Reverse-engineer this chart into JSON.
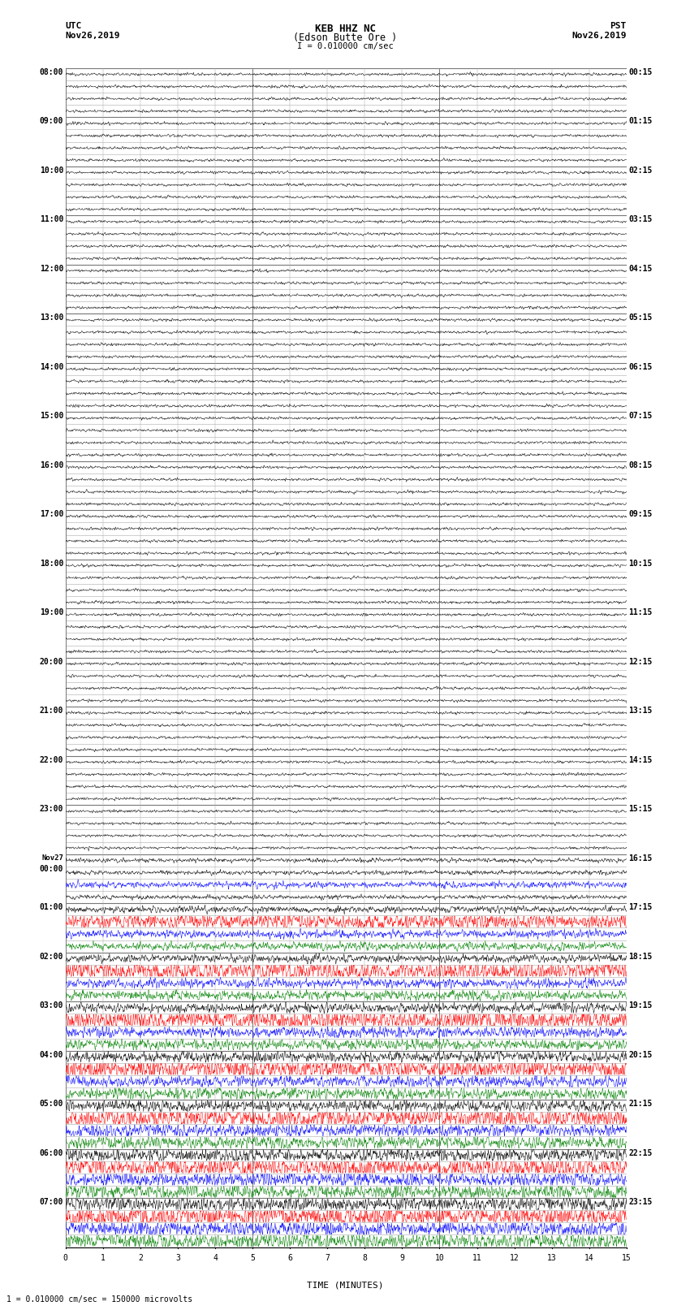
{
  "title_line1": "KEB HHZ NC",
  "title_line2": "(Edson Butte Ore )",
  "title_line3": "I = 0.010000 cm/sec",
  "utc_label": "UTC",
  "utc_date": "Nov26,2019",
  "pst_label": "PST",
  "pst_date": "Nov26,2019",
  "footer": "1 = 0.010000 cm/sec = 150000 microvolts",
  "xlabel": "TIME (MINUTES)",
  "minutes_per_row": 15,
  "rows": [
    {
      "utc": "08:00",
      "pst": "00:15",
      "label": true
    },
    {
      "utc": "",
      "pst": "",
      "label": false
    },
    {
      "utc": "",
      "pst": "",
      "label": false
    },
    {
      "utc": "",
      "pst": "",
      "label": false
    },
    {
      "utc": "09:00",
      "pst": "01:15",
      "label": true
    },
    {
      "utc": "",
      "pst": "",
      "label": false
    },
    {
      "utc": "",
      "pst": "",
      "label": false
    },
    {
      "utc": "",
      "pst": "",
      "label": false
    },
    {
      "utc": "10:00",
      "pst": "02:15",
      "label": true
    },
    {
      "utc": "",
      "pst": "",
      "label": false
    },
    {
      "utc": "",
      "pst": "",
      "label": false
    },
    {
      "utc": "",
      "pst": "",
      "label": false
    },
    {
      "utc": "11:00",
      "pst": "03:15",
      "label": true
    },
    {
      "utc": "",
      "pst": "",
      "label": false
    },
    {
      "utc": "",
      "pst": "",
      "label": false
    },
    {
      "utc": "",
      "pst": "",
      "label": false
    },
    {
      "utc": "12:00",
      "pst": "04:15",
      "label": true
    },
    {
      "utc": "",
      "pst": "",
      "label": false
    },
    {
      "utc": "",
      "pst": "",
      "label": false
    },
    {
      "utc": "",
      "pst": "",
      "label": false
    },
    {
      "utc": "13:00",
      "pst": "05:15",
      "label": true
    },
    {
      "utc": "",
      "pst": "",
      "label": false
    },
    {
      "utc": "",
      "pst": "",
      "label": false
    },
    {
      "utc": "",
      "pst": "",
      "label": false
    },
    {
      "utc": "14:00",
      "pst": "06:15",
      "label": true
    },
    {
      "utc": "",
      "pst": "",
      "label": false
    },
    {
      "utc": "",
      "pst": "",
      "label": false
    },
    {
      "utc": "",
      "pst": "",
      "label": false
    },
    {
      "utc": "15:00",
      "pst": "07:15",
      "label": true
    },
    {
      "utc": "",
      "pst": "",
      "label": false
    },
    {
      "utc": "",
      "pst": "",
      "label": false
    },
    {
      "utc": "",
      "pst": "",
      "label": false
    },
    {
      "utc": "16:00",
      "pst": "08:15",
      "label": true
    },
    {
      "utc": "",
      "pst": "",
      "label": false
    },
    {
      "utc": "",
      "pst": "",
      "label": false
    },
    {
      "utc": "",
      "pst": "",
      "label": false
    },
    {
      "utc": "17:00",
      "pst": "09:15",
      "label": true
    },
    {
      "utc": "",
      "pst": "",
      "label": false
    },
    {
      "utc": "",
      "pst": "",
      "label": false
    },
    {
      "utc": "",
      "pst": "",
      "label": false
    },
    {
      "utc": "18:00",
      "pst": "10:15",
      "label": true
    },
    {
      "utc": "",
      "pst": "",
      "label": false
    },
    {
      "utc": "",
      "pst": "",
      "label": false
    },
    {
      "utc": "",
      "pst": "",
      "label": false
    },
    {
      "utc": "19:00",
      "pst": "11:15",
      "label": true
    },
    {
      "utc": "",
      "pst": "",
      "label": false
    },
    {
      "utc": "",
      "pst": "",
      "label": false
    },
    {
      "utc": "",
      "pst": "",
      "label": false
    },
    {
      "utc": "20:00",
      "pst": "12:15",
      "label": true
    },
    {
      "utc": "",
      "pst": "",
      "label": false
    },
    {
      "utc": "",
      "pst": "",
      "label": false
    },
    {
      "utc": "",
      "pst": "",
      "label": false
    },
    {
      "utc": "21:00",
      "pst": "13:15",
      "label": true
    },
    {
      "utc": "",
      "pst": "",
      "label": false
    },
    {
      "utc": "",
      "pst": "",
      "label": false
    },
    {
      "utc": "",
      "pst": "",
      "label": false
    },
    {
      "utc": "22:00",
      "pst": "14:15",
      "label": true
    },
    {
      "utc": "",
      "pst": "",
      "label": false
    },
    {
      "utc": "",
      "pst": "",
      "label": false
    },
    {
      "utc": "",
      "pst": "",
      "label": false
    },
    {
      "utc": "23:00",
      "pst": "15:15",
      "label": true
    },
    {
      "utc": "",
      "pst": "",
      "label": false
    },
    {
      "utc": "",
      "pst": "",
      "label": false
    },
    {
      "utc": "",
      "pst": "",
      "label": false
    },
    {
      "utc": "Nov27\n00:00",
      "pst": "16:15",
      "label": true
    },
    {
      "utc": "",
      "pst": "",
      "label": false
    },
    {
      "utc": "",
      "pst": "",
      "label": false
    },
    {
      "utc": "",
      "pst": "",
      "label": false
    },
    {
      "utc": "01:00",
      "pst": "17:15",
      "label": true
    },
    {
      "utc": "",
      "pst": "",
      "label": false
    },
    {
      "utc": "",
      "pst": "",
      "label": false
    },
    {
      "utc": "",
      "pst": "",
      "label": false
    },
    {
      "utc": "02:00",
      "pst": "18:15",
      "label": true
    },
    {
      "utc": "",
      "pst": "",
      "label": false
    },
    {
      "utc": "",
      "pst": "",
      "label": false
    },
    {
      "utc": "",
      "pst": "",
      "label": false
    },
    {
      "utc": "03:00",
      "pst": "19:15",
      "label": true
    },
    {
      "utc": "",
      "pst": "",
      "label": false
    },
    {
      "utc": "",
      "pst": "",
      "label": false
    },
    {
      "utc": "",
      "pst": "",
      "label": false
    },
    {
      "utc": "04:00",
      "pst": "20:15",
      "label": true
    },
    {
      "utc": "",
      "pst": "",
      "label": false
    },
    {
      "utc": "",
      "pst": "",
      "label": false
    },
    {
      "utc": "",
      "pst": "",
      "label": false
    },
    {
      "utc": "05:00",
      "pst": "21:15",
      "label": true
    },
    {
      "utc": "",
      "pst": "",
      "label": false
    },
    {
      "utc": "",
      "pst": "",
      "label": false
    },
    {
      "utc": "",
      "pst": "",
      "label": false
    },
    {
      "utc": "06:00",
      "pst": "22:15",
      "label": true
    },
    {
      "utc": "",
      "pst": "",
      "label": false
    },
    {
      "utc": "",
      "pst": "",
      "label": false
    },
    {
      "utc": "",
      "pst": "",
      "label": false
    },
    {
      "utc": "07:00",
      "pst": "23:15",
      "label": true
    },
    {
      "utc": "",
      "pst": "",
      "label": false
    },
    {
      "utc": "",
      "pst": "",
      "label": false
    },
    {
      "utc": "",
      "pst": "",
      "label": false
    }
  ],
  "bg_color": "#ffffff",
  "grid_color_major": "#777777",
  "grid_color_minor": "#aaaaaa",
  "trace_colors": [
    "black",
    "black",
    "black",
    "black",
    "black",
    "black",
    "black",
    "black",
    "black",
    "black",
    "black",
    "black",
    "black",
    "black",
    "black",
    "black",
    "black",
    "black",
    "black",
    "black",
    "black",
    "black",
    "black",
    "black",
    "black",
    "black",
    "black",
    "black",
    "black",
    "black",
    "black",
    "black",
    "black",
    "black",
    "black",
    "black",
    "black",
    "black",
    "black",
    "black",
    "black",
    "black",
    "black",
    "black",
    "black",
    "black",
    "black",
    "black",
    "black",
    "black",
    "black",
    "black",
    "black",
    "black",
    "black",
    "black",
    "black",
    "black",
    "black",
    "black",
    "black",
    "black",
    "black",
    "black",
    "black",
    "black",
    "blue",
    "black",
    "black",
    "red",
    "blue",
    "green",
    "black",
    "red",
    "blue",
    "green",
    "black",
    "red",
    "blue",
    "green",
    "black",
    "red",
    "blue",
    "green",
    "black",
    "red",
    "blue",
    "green",
    "black",
    "red",
    "blue",
    "green",
    "black",
    "red",
    "blue",
    "green",
    "black",
    "red",
    "blue",
    "green"
  ],
  "trace_amps": [
    0.05,
    0.05,
    0.05,
    0.05,
    0.05,
    0.05,
    0.05,
    0.05,
    0.05,
    0.05,
    0.05,
    0.05,
    0.05,
    0.05,
    0.05,
    0.05,
    0.05,
    0.05,
    0.05,
    0.05,
    0.05,
    0.05,
    0.05,
    0.05,
    0.05,
    0.05,
    0.05,
    0.05,
    0.05,
    0.05,
    0.05,
    0.05,
    0.05,
    0.05,
    0.05,
    0.05,
    0.05,
    0.05,
    0.05,
    0.05,
    0.05,
    0.05,
    0.05,
    0.05,
    0.05,
    0.05,
    0.05,
    0.05,
    0.05,
    0.05,
    0.05,
    0.05,
    0.05,
    0.05,
    0.05,
    0.05,
    0.05,
    0.05,
    0.05,
    0.05,
    0.05,
    0.05,
    0.05,
    0.05,
    0.08,
    0.08,
    0.12,
    0.08,
    0.12,
    0.3,
    0.15,
    0.15,
    0.15,
    0.38,
    0.18,
    0.18,
    0.18,
    0.4,
    0.2,
    0.2,
    0.2,
    0.4,
    0.22,
    0.22,
    0.22,
    0.4,
    0.25,
    0.25,
    0.25,
    0.42,
    0.28,
    0.28,
    0.28,
    0.42,
    0.3,
    0.3,
    0.3,
    0.42,
    0.32,
    0.32
  ]
}
